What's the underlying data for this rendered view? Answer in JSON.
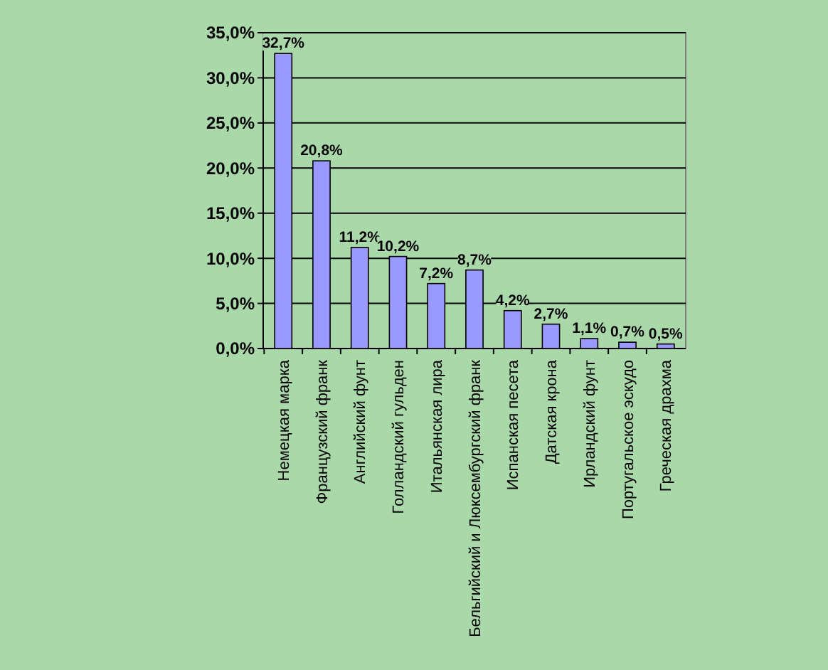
{
  "chart_data": {
    "type": "bar",
    "categories": [
      "Немецкая марка",
      "Французский франк",
      "Английский фунт",
      "Голландский гульден",
      "Итальянская лира",
      "Бельгийский и Люксембургский франк",
      "Испанская песета",
      "Датская крона",
      "Ирландский фунт",
      "Португальское эскудо",
      "Греческая драхма"
    ],
    "values": [
      32.7,
      20.8,
      11.2,
      10.2,
      7.2,
      8.7,
      4.2,
      2.7,
      1.1,
      0.7,
      0.5
    ],
    "value_labels": [
      "32,7%",
      "20,8%",
      "11,2%",
      "10,2%",
      "7,2%",
      "8,7%",
      "4,2%",
      "2,7%",
      "1,1%",
      "0,7%",
      "0,5%"
    ],
    "color": "#9999ff",
    "ylim": [
      0,
      35
    ],
    "yticks": [
      {
        "value": 0,
        "label": "0,0%"
      },
      {
        "value": 5,
        "label": "5,0%"
      },
      {
        "value": 10,
        "label": "10,0%"
      },
      {
        "value": 15,
        "label": "15,0%"
      },
      {
        "value": 20,
        "label": "20,0%"
      },
      {
        "value": 25,
        "label": "25,0%"
      },
      {
        "value": 30,
        "label": "30,0%"
      },
      {
        "value": 35,
        "label": "35,0%"
      }
    ],
    "grid": "y"
  }
}
